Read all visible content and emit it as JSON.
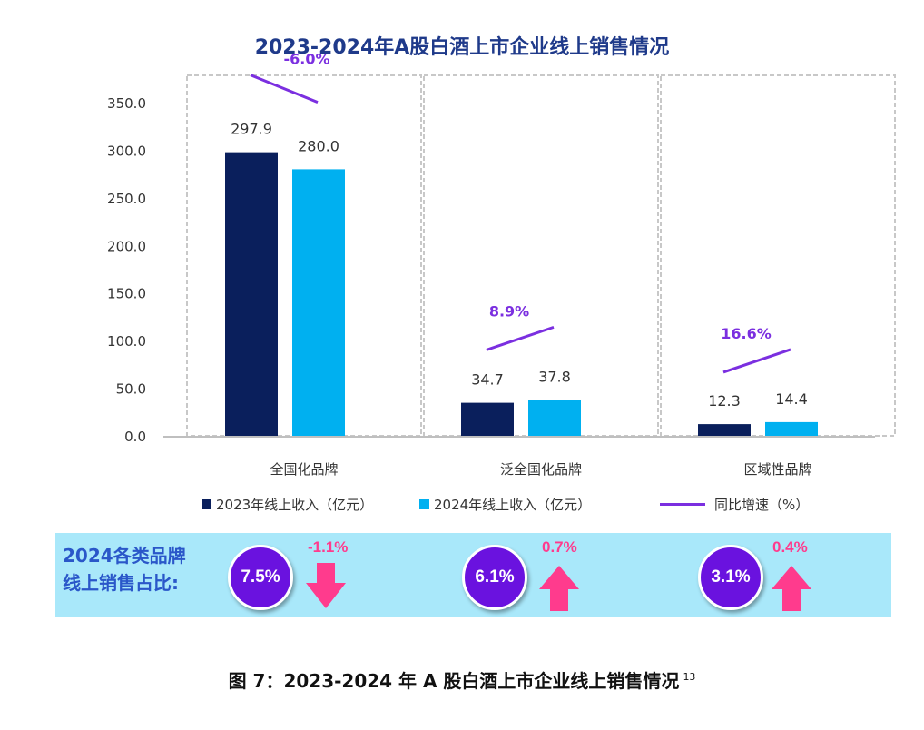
{
  "chart_data": {
    "type": "bar",
    "title": "2023-2024年A股白酒上市企业线上销售情况",
    "categories": [
      "全国化品牌",
      "泛全国化品牌",
      "区域性品牌"
    ],
    "series": [
      {
        "name": "2023年线上收入（亿元）",
        "color": "#0a1f5c",
        "values": [
          297.9,
          34.7,
          12.3
        ]
      },
      {
        "name": "2024年线上收入（亿元）",
        "color": "#00b0f0",
        "values": [
          280.0,
          37.8,
          14.4
        ]
      }
    ],
    "growth": {
      "name": "同比增速（%）",
      "color": "#7b2fe0",
      "values": [
        "-6.0%",
        "8.9%",
        "16.6%"
      ],
      "direction": [
        "down",
        "up",
        "up"
      ]
    },
    "value_labels": [
      [
        "297.9",
        "280.0"
      ],
      [
        "34.7",
        "37.8"
      ],
      [
        "12.3",
        "14.4"
      ]
    ],
    "yticks": [
      "0.0",
      "50.0",
      "100.0",
      "150.0",
      "200.0",
      "250.0",
      "300.0",
      "350.0"
    ],
    "ylim": [
      0,
      350
    ],
    "xlabel": "",
    "ylabel": "",
    "grid": false,
    "legend_position": "bottom"
  },
  "legend": [
    {
      "label": "2023年线上收入（亿元）",
      "kind": "square",
      "color": "#0a1f5c"
    },
    {
      "label": "2024年线上收入（亿元）",
      "kind": "square",
      "color": "#00b0f0"
    },
    {
      "label": "同比增速（%）",
      "kind": "line",
      "color": "#7b2fe0"
    }
  ],
  "share_band": {
    "label_line1": "2024各类品牌",
    "label_line2": "线上销售占比:",
    "items": [
      {
        "share": "7.5%",
        "change": "-1.1%",
        "direction": "down"
      },
      {
        "share": "6.1%",
        "change": "0.7%",
        "direction": "up"
      },
      {
        "share": "3.1%",
        "change": "0.4%",
        "direction": "up"
      }
    ]
  },
  "caption": {
    "text": "图 7：2023-2024 年 A 股白酒上市企业线上销售情况",
    "footnote": "13"
  }
}
